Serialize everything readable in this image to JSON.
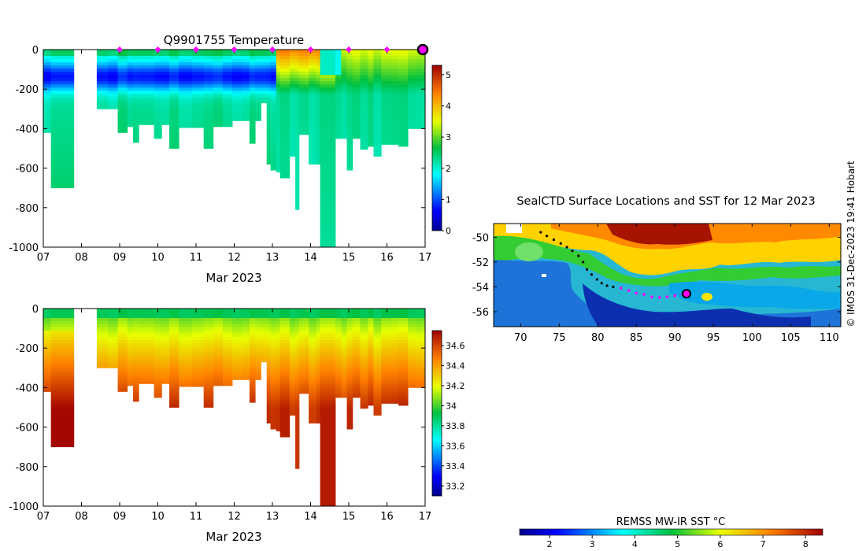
{
  "panels": {
    "temperature": {
      "title": "Q9901755  Temperature",
      "xlabel": "Mar 2023",
      "colorbar_ticks": [
        "0",
        "1",
        "2",
        "3",
        "4",
        "5"
      ]
    },
    "salinity": {
      "title": "",
      "xlabel": "Mar 2023",
      "colorbar_ticks": [
        "33.2",
        "33.4",
        "33.6",
        "33.8",
        "34",
        "34.2",
        "34.4",
        "34.6"
      ]
    },
    "map": {
      "title": "SealCTD Surface Locations and SST for 12 Mar 2023",
      "sst_label": "REMSS MW-IR SST °C",
      "sst_ticks": [
        "2",
        "3",
        "4",
        "5",
        "6",
        "7",
        "8"
      ],
      "credit": "© IMOS 31-Dec-2023 19:41 Hobart"
    }
  },
  "chart_data": [
    {
      "type": "heatmap",
      "title": "Q9901755  Temperature",
      "xlabel": "Mar 2023",
      "ylabel": "",
      "x_ticks": [
        "07",
        "08",
        "09",
        "10",
        "11",
        "12",
        "13",
        "14",
        "15",
        "16",
        "17"
      ],
      "y_ticks": [
        "0",
        "-200",
        "-400",
        "-600",
        "-800",
        "-1000"
      ],
      "xlim": [
        7,
        17
      ],
      "ylim": [
        -1000,
        0
      ],
      "colorbar": {
        "min": 0,
        "max": 5.3,
        "ticks": [
          0,
          1,
          2,
          3,
          4,
          5
        ],
        "colormap": "jet"
      },
      "surface_markers": [
        9,
        10,
        11,
        12,
        13,
        14,
        15,
        16
      ],
      "latest_marker": 17,
      "profiles": [
        {
          "t0": 7.0,
          "t1": 7.2,
          "depth": 420
        },
        {
          "t0": 7.2,
          "t1": 7.8,
          "depth": 700
        },
        {
          "t0": 8.4,
          "t1": 8.7,
          "depth": 300
        },
        {
          "t0": 8.7,
          "t1": 8.95,
          "depth": 300
        },
        {
          "t0": 8.95,
          "t1": 9.2,
          "depth": 420
        },
        {
          "t0": 9.2,
          "t1": 9.35,
          "depth": 390
        },
        {
          "t0": 9.35,
          "t1": 9.5,
          "depth": 470
        },
        {
          "t0": 9.5,
          "t1": 9.7,
          "depth": 380
        },
        {
          "t0": 9.7,
          "t1": 9.9,
          "depth": 380
        },
        {
          "t0": 9.9,
          "t1": 10.1,
          "depth": 450
        },
        {
          "t0": 10.1,
          "t1": 10.3,
          "depth": 380
        },
        {
          "t0": 10.3,
          "t1": 10.55,
          "depth": 500
        },
        {
          "t0": 10.55,
          "t1": 10.9,
          "depth": 395
        },
        {
          "t0": 10.9,
          "t1": 11.2,
          "depth": 395
        },
        {
          "t0": 11.2,
          "t1": 11.45,
          "depth": 500
        },
        {
          "t0": 11.45,
          "t1": 11.7,
          "depth": 390
        },
        {
          "t0": 11.7,
          "t1": 11.95,
          "depth": 390
        },
        {
          "t0": 11.95,
          "t1": 12.2,
          "depth": 360
        },
        {
          "t0": 12.2,
          "t1": 12.4,
          "depth": 360
        },
        {
          "t0": 12.4,
          "t1": 12.55,
          "depth": 475
        },
        {
          "t0": 12.55,
          "t1": 12.7,
          "depth": 360
        },
        {
          "t0": 12.7,
          "t1": 12.85,
          "depth": 270
        },
        {
          "t0": 12.85,
          "t1": 12.95,
          "depth": 580
        },
        {
          "t0": 12.95,
          "t1": 13.1,
          "depth": 610
        },
        {
          "t0": 13.1,
          "t1": 13.2,
          "depth": 620
        },
        {
          "t0": 13.2,
          "t1": 13.45,
          "depth": 650
        },
        {
          "t0": 13.45,
          "t1": 13.6,
          "depth": 540
        },
        {
          "t0": 13.6,
          "t1": 13.7,
          "depth": 810
        },
        {
          "t0": 13.7,
          "t1": 13.85,
          "depth": 430
        },
        {
          "t0": 13.85,
          "t1": 13.95,
          "depth": 430
        },
        {
          "t0": 13.95,
          "t1": 14.15,
          "depth": 580
        },
        {
          "t0": 14.15,
          "t1": 14.25,
          "depth": 580
        },
        {
          "t0": 14.25,
          "t1": 14.65,
          "depth": 1000
        },
        {
          "t0": 14.65,
          "t1": 14.8,
          "depth": 450
        },
        {
          "t0": 14.8,
          "t1": 14.95,
          "depth": 450
        },
        {
          "t0": 14.95,
          "t1": 15.1,
          "depth": 610
        },
        {
          "t0": 15.1,
          "t1": 15.3,
          "depth": 450
        },
        {
          "t0": 15.3,
          "t1": 15.5,
          "depth": 505
        },
        {
          "t0": 15.5,
          "t1": 15.65,
          "depth": 490
        },
        {
          "t0": 15.65,
          "t1": 15.85,
          "depth": 540
        },
        {
          "t0": 15.85,
          "t1": 16.1,
          "depth": 480
        },
        {
          "t0": 16.1,
          "t1": 16.3,
          "depth": 480
        },
        {
          "t0": 16.3,
          "t1": 16.55,
          "depth": 490
        },
        {
          "t0": 16.55,
          "t1": 16.75,
          "depth": 400
        },
        {
          "t0": 16.75,
          "t1": 17.0,
          "depth": 400
        }
      ]
    },
    {
      "type": "heatmap",
      "title": "",
      "xlabel": "Mar 2023",
      "ylabel": "",
      "x_ticks": [
        "07",
        "08",
        "09",
        "10",
        "11",
        "12",
        "13",
        "14",
        "15",
        "16",
        "17"
      ],
      "y_ticks": [
        "0",
        "-200",
        "-400",
        "-600",
        "-800",
        "-1000"
      ],
      "xlim": [
        7,
        17
      ],
      "ylim": [
        -1000,
        0
      ],
      "colorbar": {
        "min": 33.1,
        "max": 34.75,
        "ticks": [
          33.2,
          33.4,
          33.6,
          33.8,
          34,
          34.2,
          34.4,
          34.6
        ],
        "colormap": "jet"
      },
      "same_profiles_as": "temperature"
    },
    {
      "type": "scatter",
      "title": "SealCTD Surface Locations and SST for 12 Mar 2023",
      "x_ticks": [
        "70",
        "75",
        "80",
        "85",
        "90",
        "95",
        "100",
        "105",
        "110"
      ],
      "y_ticks": [
        "-50",
        "-52",
        "-54",
        "-56"
      ],
      "xlim": [
        66.5,
        111.5
      ],
      "ylim": [
        -57.2,
        -48.9
      ],
      "sst_colorbar": {
        "label": "REMSS MW-IR SST °C",
        "min": 1.3,
        "max": 8.4,
        "ticks": [
          2,
          3,
          4,
          5,
          6,
          7,
          8
        ]
      },
      "track_black": [
        [
          72.6,
          -49.6
        ],
        [
          73.4,
          -49.9
        ],
        [
          74.3,
          -50.2
        ],
        [
          75.2,
          -50.5
        ],
        [
          76,
          -50.8
        ],
        [
          76.7,
          -51.1
        ],
        [
          77.5,
          -51.5
        ],
        [
          78.1,
          -52.0
        ],
        [
          78.6,
          -52.6
        ],
        [
          79.2,
          -53.0
        ],
        [
          79.9,
          -53.4
        ],
        [
          80.5,
          -53.7
        ],
        [
          81.2,
          -53.9
        ],
        [
          82.0,
          -54.0
        ]
      ],
      "track_magenta": [
        [
          83.0,
          -54.1
        ],
        [
          84.0,
          -54.3
        ],
        [
          85.0,
          -54.5
        ],
        [
          86.0,
          -54.6
        ],
        [
          87.0,
          -54.8
        ],
        [
          88.0,
          -54.85
        ],
        [
          89.0,
          -54.8
        ],
        [
          90.0,
          -54.7
        ],
        [
          91.0,
          -54.6
        ]
      ],
      "latest_position": [
        91.5,
        -54.55
      ]
    }
  ],
  "colors": {
    "marker_magenta": "#ff00ff",
    "track_black": "#000000",
    "frame": "#000000"
  }
}
